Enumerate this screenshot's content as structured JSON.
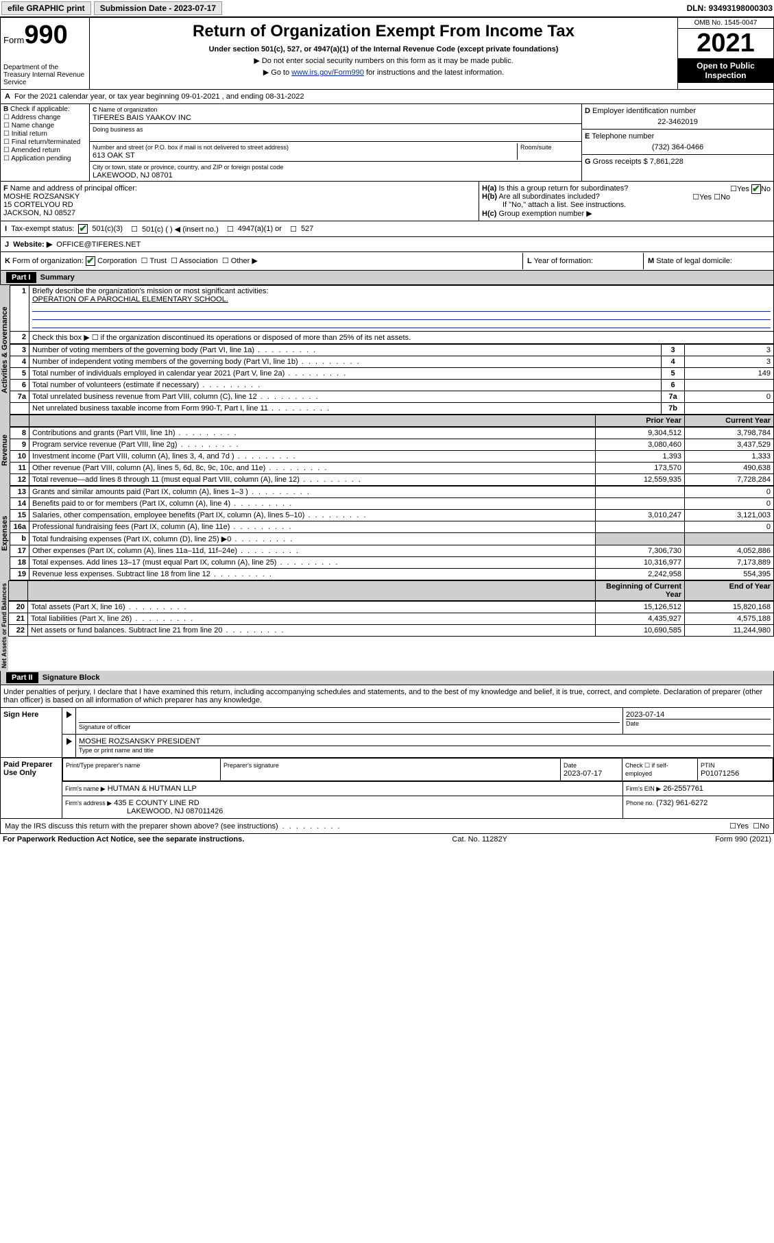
{
  "topbar": {
    "efile_btn": "efile GRAPHIC print",
    "sub_label": "Submission Date - 2023-07-17",
    "dln": "DLN: 93493198000303"
  },
  "header": {
    "form_label": "Form",
    "form_number": "990",
    "dept": "Department of the Treasury Internal Revenue Service",
    "title": "Return of Organization Exempt From Income Tax",
    "sub": "Under section 501(c), 527, or 4947(a)(1) of the Internal Revenue Code (except private foundations)",
    "note1": "▶ Do not enter social security numbers on this form as it may be made public.",
    "note2_prefix": "▶ Go to ",
    "note2_link": "www.irs.gov/Form990",
    "note2_suffix": " for instructions and the latest information.",
    "omb": "OMB No. 1545-0047",
    "year": "2021",
    "open_public": "Open to Public Inspection"
  },
  "A": {
    "text": "For the 2021 calendar year, or tax year beginning 09-01-2021   , and ending 08-31-2022"
  },
  "B": {
    "label": "Check if applicable:",
    "items": [
      "Address change",
      "Name change",
      "Initial return",
      "Final return/terminated",
      "Amended return",
      "Application pending"
    ]
  },
  "C": {
    "name_label": "Name of organization",
    "name": "TIFERES BAIS YAAKOV INC",
    "dba_label": "Doing business as",
    "dba": "",
    "street_label": "Number and street (or P.O. box if mail is not delivered to street address)",
    "room_label": "Room/suite",
    "street": "613 OAK ST",
    "city_label": "City or town, state or province, country, and ZIP or foreign postal code",
    "city": "LAKEWOOD, NJ  08701"
  },
  "D": {
    "label": "Employer identification number",
    "value": "22-3462019"
  },
  "E": {
    "label": "Telephone number",
    "value": "(732) 364-0466"
  },
  "G": {
    "label": "Gross receipts $",
    "value": "7,861,228"
  },
  "F": {
    "label": "Name and address of principal officer:",
    "name": "MOSHE ROZSANSKY",
    "addr1": "15 CORTELYOU RD",
    "addr2": "JACKSON, NJ  08527"
  },
  "H": {
    "a": "Is this a group return for subordinates?",
    "a_yes": "Yes",
    "a_no": "No",
    "b": "Are all subordinates included?",
    "b_note": "If \"No,\" attach a list. See instructions.",
    "c": "Group exemption number ▶"
  },
  "I": {
    "label": "Tax-exempt status:",
    "opts": [
      "501(c)(3)",
      "501(c) (  ) ◀ (insert no.)",
      "4947(a)(1) or",
      "527"
    ]
  },
  "J": {
    "label": "Website: ▶",
    "value": "OFFICE@TIFERES.NET"
  },
  "K": {
    "label": "Form of organization:",
    "opts": [
      "Corporation",
      "Trust",
      "Association",
      "Other ▶"
    ]
  },
  "L": {
    "label": "Year of formation:",
    "value": ""
  },
  "M": {
    "label": "State of legal domicile:",
    "value": ""
  },
  "partI": {
    "header": "Part I",
    "title": "Summary",
    "q1_label": "Briefly describe the organization's mission or most significant activities:",
    "q1_val": "OPERATION OF A PAROCHIAL ELEMENTARY SCHOOL.",
    "q2": "Check this box ▶ ☐  if the organization discontinued its operations or disposed of more than 25% of its net assets.",
    "lines_single": [
      {
        "n": "3",
        "t": "Number of voting members of the governing body (Part VI, line 1a)",
        "box": "3",
        "v": "3"
      },
      {
        "n": "4",
        "t": "Number of independent voting members of the governing body (Part VI, line 1b)",
        "box": "4",
        "v": "3"
      },
      {
        "n": "5",
        "t": "Total number of individuals employed in calendar year 2021 (Part V, line 2a)",
        "box": "5",
        "v": "149"
      },
      {
        "n": "6",
        "t": "Total number of volunteers (estimate if necessary)",
        "box": "6",
        "v": ""
      },
      {
        "n": "7a",
        "t": "Total unrelated business revenue from Part VIII, column (C), line 12",
        "box": "7a",
        "v": "0"
      },
      {
        "n": "",
        "t": "Net unrelated business taxable income from Form 990-T, Part I, line 11",
        "box": "7b",
        "v": ""
      }
    ],
    "col_prior": "Prior Year",
    "col_current": "Current Year",
    "revenue": [
      {
        "n": "8",
        "t": "Contributions and grants (Part VIII, line 1h)",
        "p": "9,304,512",
        "c": "3,798,784"
      },
      {
        "n": "9",
        "t": "Program service revenue (Part VIII, line 2g)",
        "p": "3,080,460",
        "c": "3,437,529"
      },
      {
        "n": "10",
        "t": "Investment income (Part VIII, column (A), lines 3, 4, and 7d )",
        "p": "1,393",
        "c": "1,333"
      },
      {
        "n": "11",
        "t": "Other revenue (Part VIII, column (A), lines 5, 6d, 8c, 9c, 10c, and 11e)",
        "p": "173,570",
        "c": "490,638"
      },
      {
        "n": "12",
        "t": "Total revenue—add lines 8 through 11 (must equal Part VIII, column (A), line 12)",
        "p": "12,559,935",
        "c": "7,728,284"
      }
    ],
    "expenses": [
      {
        "n": "13",
        "t": "Grants and similar amounts paid (Part IX, column (A), lines 1–3 )",
        "p": "",
        "c": "0"
      },
      {
        "n": "14",
        "t": "Benefits paid to or for members (Part IX, column (A), line 4)",
        "p": "",
        "c": "0"
      },
      {
        "n": "15",
        "t": "Salaries, other compensation, employee benefits (Part IX, column (A), lines 5–10)",
        "p": "3,010,247",
        "c": "3,121,003"
      },
      {
        "n": "16a",
        "t": "Professional fundraising fees (Part IX, column (A), line 11e)",
        "p": "",
        "c": "0"
      },
      {
        "n": "b",
        "t": "Total fundraising expenses (Part IX, column (D), line 25) ▶0",
        "p": "GREY",
        "c": "GREY"
      },
      {
        "n": "17",
        "t": "Other expenses (Part IX, column (A), lines 11a–11d, 11f–24e)",
        "p": "7,306,730",
        "c": "4,052,886"
      },
      {
        "n": "18",
        "t": "Total expenses. Add lines 13–17 (must equal Part IX, column (A), line 25)",
        "p": "10,316,977",
        "c": "7,173,889"
      },
      {
        "n": "19",
        "t": "Revenue less expenses. Subtract line 18 from line 12",
        "p": "2,242,958",
        "c": "554,395"
      }
    ],
    "col_begin": "Beginning of Current Year",
    "col_end": "End of Year",
    "netassets": [
      {
        "n": "20",
        "t": "Total assets (Part X, line 16)",
        "p": "15,126,512",
        "c": "15,820,168"
      },
      {
        "n": "21",
        "t": "Total liabilities (Part X, line 26)",
        "p": "4,435,927",
        "c": "4,575,188"
      },
      {
        "n": "22",
        "t": "Net assets or fund balances. Subtract line 21 from line 20",
        "p": "10,690,585",
        "c": "11,244,980"
      }
    ],
    "vlabels": {
      "gov": "Activities & Governance",
      "rev": "Revenue",
      "exp": "Expenses",
      "net": "Net Assets or Fund Balances"
    }
  },
  "partII": {
    "header": "Part II",
    "title": "Signature Block",
    "decl": "Under penalties of perjury, I declare that I have examined this return, including accompanying schedules and statements, and to the best of my knowledge and belief, it is true, correct, and complete. Declaration of preparer (other than officer) is based on all information of which preparer has any knowledge.",
    "sign_here": "Sign Here",
    "sig_officer": "Signature of officer",
    "sig_date": "Date",
    "sig_date_val": "2023-07-14",
    "officer_name": "MOSHE ROZSANSKY PRESIDENT",
    "type_name": "Type or print name and title",
    "paid": "Paid Preparer Use Only",
    "prep_name_lbl": "Print/Type preparer's name",
    "prep_sig_lbl": "Preparer's signature",
    "prep_date_lbl": "Date",
    "prep_date_val": "2023-07-17",
    "check_if": "Check ☐ if self-employed",
    "ptin_lbl": "PTIN",
    "ptin_val": "P01071256",
    "firm_name_lbl": "Firm's name    ▶",
    "firm_name": "HUTMAN & HUTMAN LLP",
    "firm_ein_lbl": "Firm's EIN ▶",
    "firm_ein": "26-2557761",
    "firm_addr_lbl": "Firm's address ▶",
    "firm_addr1": "435 E COUNTY LINE RD",
    "firm_addr2": "LAKEWOOD, NJ 087011426",
    "phone_lbl": "Phone no.",
    "phone": "(732) 961-6272",
    "may_irs": "May the IRS discuss this return with the preparer shown above? (see instructions)",
    "yes": "Yes",
    "no": "No"
  },
  "footer": {
    "left": "For Paperwork Reduction Act Notice, see the separate instructions.",
    "mid": "Cat. No. 11282Y",
    "right": "Form 990 (2021)"
  },
  "colors": {
    "link": "#003399",
    "check": "#1e6e1e",
    "grey": "#cfcfcf"
  }
}
